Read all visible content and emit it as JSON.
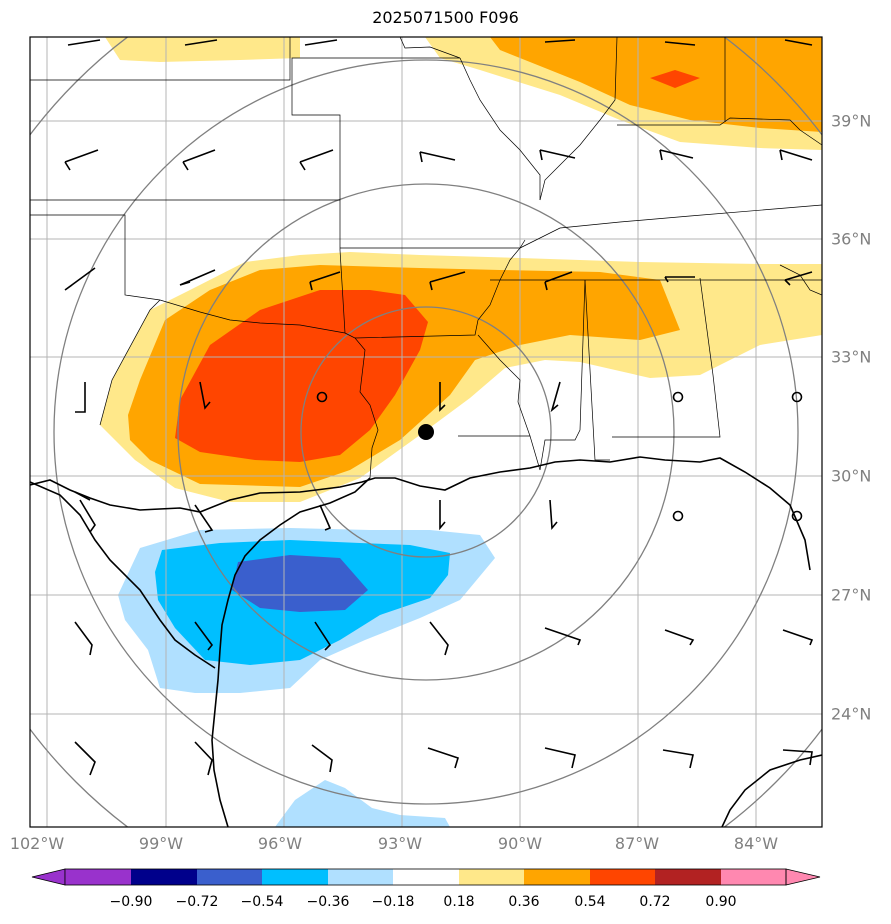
{
  "title": "2025071500 F096",
  "lon_labels": [
    "102°W",
    "99°W",
    "96°W",
    "93°W",
    "90°W",
    "87°W",
    "84°W"
  ],
  "lat_labels": [
    "39°N",
    "36°N",
    "33°N",
    "30°N",
    "27°N",
    "24°N"
  ],
  "colorbar": {
    "ticks": [
      "−0.90",
      "−0.72",
      "−0.54",
      "−0.36",
      "−0.18",
      "0.18",
      "0.36",
      "0.54",
      "0.72",
      "0.90"
    ],
    "colors": [
      "#9932cc",
      "#00008b",
      "#3a5fcd",
      "#00bfff",
      "#b0e0ff",
      "#ffffff",
      "#ffe88a",
      "#ffa500",
      "#ff4500",
      "#b22222",
      "#ff88b0"
    ]
  },
  "fill_colors": {
    "light_yellow": "#ffe88a",
    "orange": "#ffa500",
    "red_orange": "#ff4500",
    "light_blue": "#b0e0ff",
    "deep_sky_blue": "#00bfff",
    "royal_blue": "#3a5fcd"
  }
}
